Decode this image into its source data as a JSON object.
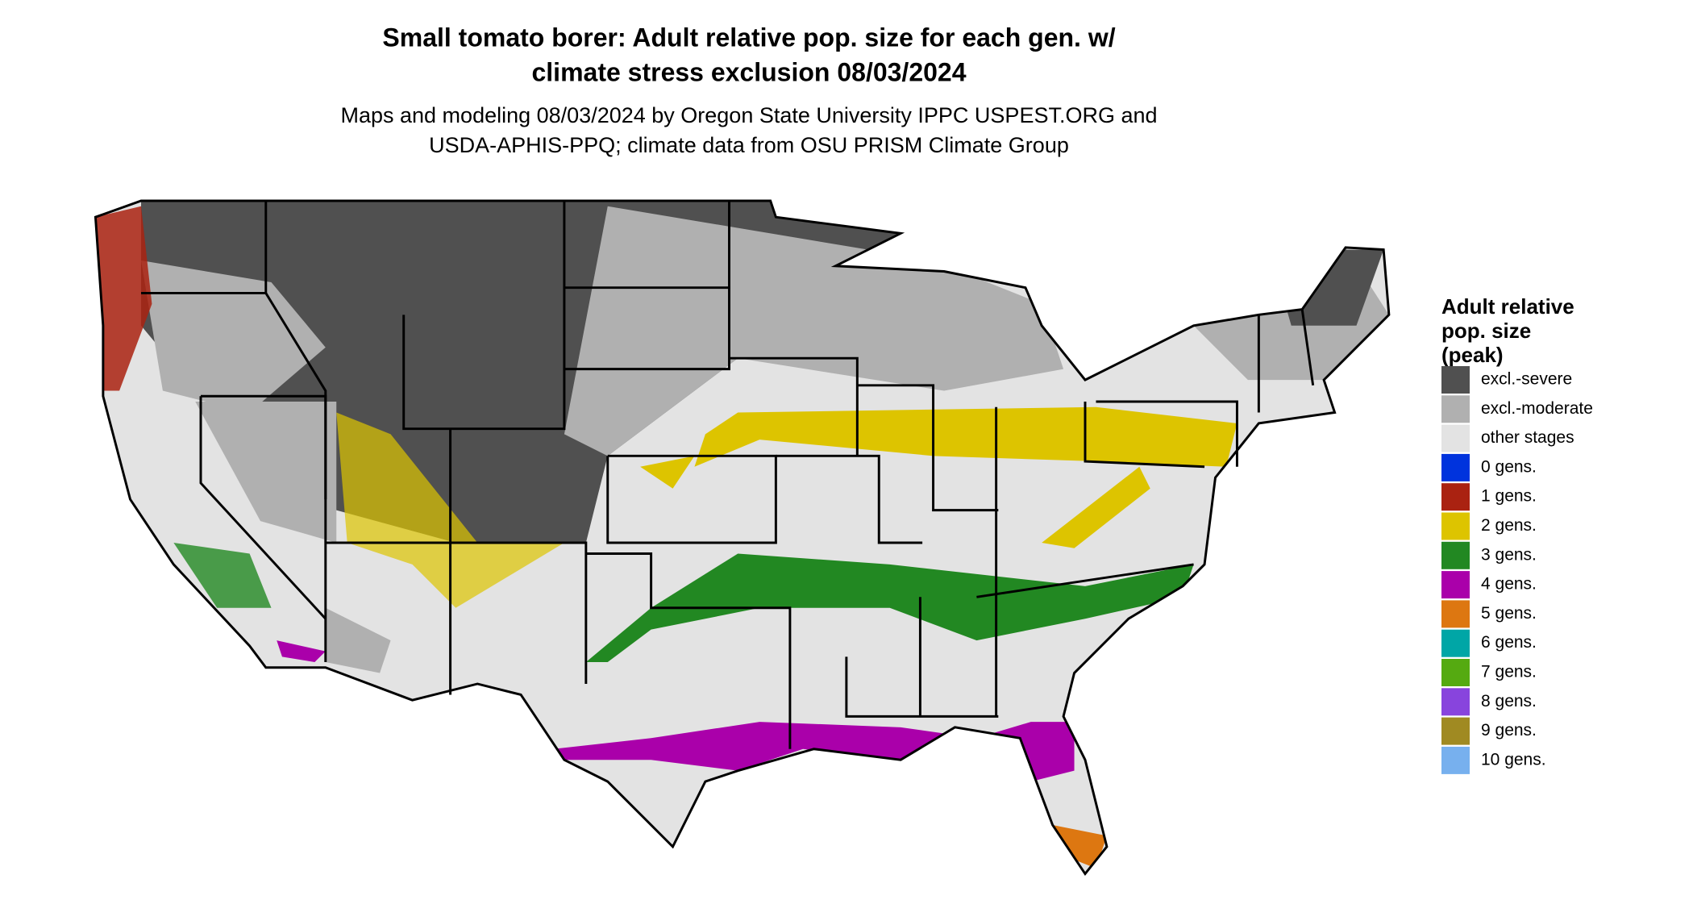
{
  "map": {
    "title_lines": [
      "Small tomato borer: Adult relative pop. size for each gen. w/",
      "climate stress exclusion 08/03/2024"
    ],
    "subtitle_lines": [
      "Maps and modeling 08/03/2024 by Oregon State University IPPC USPEST.ORG and",
      "USDA-APHIS-PPQ; climate data from OSU PRISM Climate Group"
    ],
    "legend": {
      "title_lines": [
        "Adult relative",
        "pop. size",
        "(peak)"
      ],
      "items": [
        {
          "label": "excl.-severe",
          "color": "#505050"
        },
        {
          "label": "excl.-moderate",
          "color": "#b0b0b0"
        },
        {
          "label": "other stages",
          "color": "#e3e3e3"
        },
        {
          "label": "0 gens.",
          "color": "#0033dd"
        },
        {
          "label": "1 gens.",
          "color": "#aa2211"
        },
        {
          "label": "2 gens.",
          "color": "#ddc400"
        },
        {
          "label": "3 gens.",
          "color": "#228822"
        },
        {
          "label": "4 gens.",
          "color": "#aa00aa"
        },
        {
          "label": "5 gens.",
          "color": "#dd7711"
        },
        {
          "label": "6 gens.",
          "color": "#00a6a6"
        },
        {
          "label": "7 gens.",
          "color": "#55aa11"
        },
        {
          "label": "8 gens.",
          "color": "#8844dd"
        },
        {
          "label": "9 gens.",
          "color": "#a08a22"
        },
        {
          "label": "10 gens.",
          "color": "#77b0ee"
        }
      ]
    }
  }
}
